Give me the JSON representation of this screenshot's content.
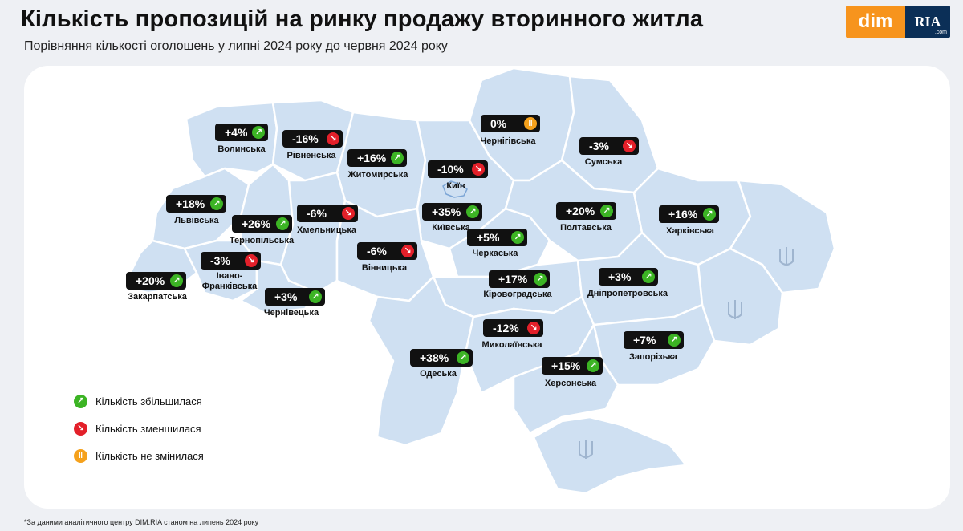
{
  "header": {
    "title": "Кількість пропозицій на ринку продажу вторинного житла",
    "subtitle": "Порівняння кількості оголошень у липні 2024 року до червня 2024 року"
  },
  "logo": {
    "dim": "dim",
    "ria": "RIA",
    "ria_domain": ".com"
  },
  "colors": {
    "increase": "#3cb424",
    "decrease": "#e3202a",
    "unchanged": "#f5a11c",
    "map_fill": "#cfe0f2",
    "badge": "#111111"
  },
  "capital": {
    "name": "Київ"
  },
  "regions": [
    {
      "key": "volynska",
      "name": "Волинська",
      "change": "+4%",
      "trend": "up"
    },
    {
      "key": "rivnenska",
      "name": "Рівненська",
      "change": "-16%",
      "trend": "down"
    },
    {
      "key": "zhytomyrska",
      "name": "Житомирська",
      "change": "+16%",
      "trend": "up"
    },
    {
      "key": "chernihivska",
      "name": "Чернігівська",
      "change": "0%",
      "trend": "same"
    },
    {
      "key": "sumska",
      "name": "Сумська",
      "change": "-3%",
      "trend": "down"
    },
    {
      "key": "kyiv",
      "name": "",
      "change": "-10%",
      "trend": "down"
    },
    {
      "key": "lvivska",
      "name": "Львівська",
      "change": "+18%",
      "trend": "up"
    },
    {
      "key": "ternopilska",
      "name": "Тернопільська",
      "change": "+26%",
      "trend": "up"
    },
    {
      "key": "khmelnytska",
      "name": "Хмельницька",
      "change": "-6%",
      "trend": "down"
    },
    {
      "key": "kyivska",
      "name": "Київська",
      "change": "+35%",
      "trend": "up"
    },
    {
      "key": "poltavska",
      "name": "Полтавська",
      "change": "+20%",
      "trend": "up"
    },
    {
      "key": "kharkivska",
      "name": "Харківська",
      "change": "+16%",
      "trend": "up"
    },
    {
      "key": "cherkaska",
      "name": "Черкаська",
      "change": "+5%",
      "trend": "up"
    },
    {
      "key": "vinnytska",
      "name": "Вінницька",
      "change": "-6%",
      "trend": "down"
    },
    {
      "key": "ivano_frankivska",
      "name": "Івано-Франківська",
      "change": "-3%",
      "trend": "down"
    },
    {
      "key": "zakarpatska",
      "name": "Закарпатська",
      "change": "+20%",
      "trend": "up"
    },
    {
      "key": "chernivetska",
      "name": "Чернівецька",
      "change": "+3%",
      "trend": "up"
    },
    {
      "key": "kirovohradska",
      "name": "Кіровоградська",
      "change": "+17%",
      "trend": "up"
    },
    {
      "key": "dnipropetrovska",
      "name": "Дніпропетровська",
      "change": "+3%",
      "trend": "up"
    },
    {
      "key": "mykolaivska",
      "name": "Миколаївська",
      "change": "-12%",
      "trend": "down"
    },
    {
      "key": "odeska",
      "name": "Одеська",
      "change": "+38%",
      "trend": "up"
    },
    {
      "key": "zaporizka",
      "name": "Запорізька",
      "change": "+7%",
      "trend": "up"
    },
    {
      "key": "khersonska",
      "name": "Херсонська",
      "change": "+15%",
      "trend": "up"
    }
  ],
  "legend": [
    {
      "trend": "up",
      "label": "Кількість збільшилася"
    },
    {
      "trend": "down",
      "label": "Кількість зменшилася"
    },
    {
      "trend": "same",
      "label": "Кількість не змінилася"
    }
  ],
  "footnote": "*За даними аналітичного центру DIM.RIA станом на липень 2024 року"
}
